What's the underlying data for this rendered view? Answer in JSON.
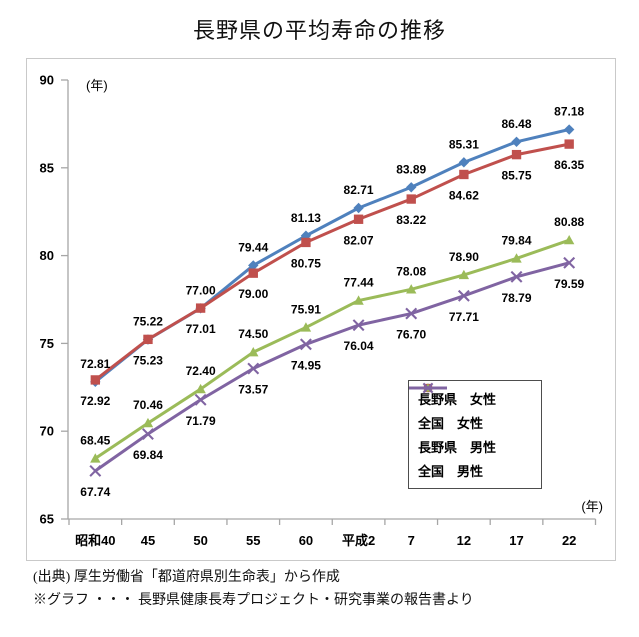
{
  "title": "長野県の平均寿命の推移",
  "chart_data": {
    "type": "line",
    "title": "長野県の平均寿命の推移",
    "x_unit_label": "(年)",
    "y_unit_label": "(年)",
    "categories": [
      "昭和40",
      "45",
      "50",
      "55",
      "60",
      "平成2",
      "7",
      "12",
      "17",
      "22"
    ],
    "yticks": [
      90,
      85,
      80,
      75,
      70,
      65
    ],
    "ylim": [
      65,
      90
    ],
    "grid": false,
    "legend_position": "inside-bottom-right",
    "axis_color": "#a6a6a6",
    "series": [
      {
        "name": "長野県　女性",
        "color": "#4F81BD",
        "marker": "diamond",
        "label_position": "above",
        "values": [
          72.81,
          75.22,
          77.0,
          79.44,
          81.13,
          82.71,
          83.89,
          85.31,
          86.48,
          87.18
        ]
      },
      {
        "name": "全国　女性",
        "color": "#C0504D",
        "marker": "square",
        "label_position": "below",
        "values": [
          72.92,
          75.23,
          77.01,
          79.0,
          80.75,
          82.07,
          83.22,
          84.62,
          85.75,
          86.35
        ]
      },
      {
        "name": "長野県　男性",
        "color": "#9BBB59",
        "marker": "triangle",
        "label_position": "above",
        "values": [
          68.45,
          70.46,
          72.4,
          74.5,
          75.91,
          77.44,
          78.08,
          78.9,
          79.84,
          80.88
        ]
      },
      {
        "name": "全国　男性",
        "color": "#8064A2",
        "marker": "x",
        "label_position": "below",
        "values": [
          67.74,
          69.84,
          71.79,
          73.57,
          74.95,
          76.04,
          76.7,
          77.71,
          78.79,
          79.59
        ]
      }
    ]
  },
  "source": {
    "line1": "(出典) 厚生労働省「都道府県別生命表」から作成",
    "line2": "※グラフ ・・・ 長野県健康長寿プロジェクト・研究事業の報告書より"
  }
}
